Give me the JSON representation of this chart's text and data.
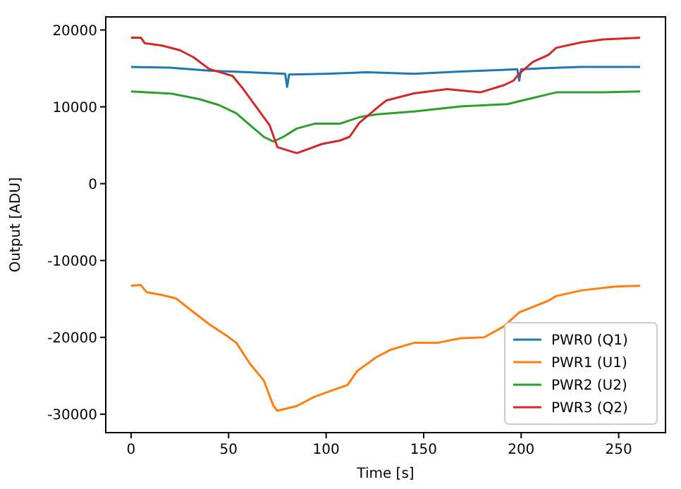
{
  "chart_data": {
    "type": "line",
    "xlabel": "Time [s]",
    "ylabel": "Output [ADU]",
    "xlim": [
      -13,
      274
    ],
    "ylim": [
      -32400,
      21700
    ],
    "xticks": [
      0,
      50,
      100,
      150,
      200,
      250
    ],
    "yticks": [
      -30000,
      -20000,
      -10000,
      0,
      10000,
      20000
    ],
    "grid": false,
    "legend": "bottom right",
    "line_style": "solid",
    "marker": "none",
    "series": [
      {
        "name": "PWR0 (Q1)",
        "color": "#1f77b4",
        "x": [
          0,
          20,
          40,
          60,
          79,
          80,
          81,
          100,
          121,
          145,
          169,
          190,
          198,
          199,
          200,
          210,
          230,
          261
        ],
        "values": [
          15200,
          15100,
          14700,
          14500,
          14300,
          12600,
          14200,
          14300,
          14500,
          14300,
          14600,
          14800,
          14900,
          13400,
          14900,
          15000,
          15200,
          15200
        ]
      },
      {
        "name": "PWR1 (U1)",
        "color": "#ff7f0e",
        "x": [
          0,
          5,
          8,
          16,
          23,
          30,
          40,
          49,
          54,
          61,
          68,
          73,
          75,
          85,
          94,
          104,
          111,
          116,
          126,
          133,
          145,
          157,
          169,
          181,
          191,
          199,
          214,
          218,
          231,
          248,
          261
        ],
        "values": [
          -13290,
          -13200,
          -14130,
          -14500,
          -14930,
          -16330,
          -18280,
          -19800,
          -20720,
          -23460,
          -25600,
          -28940,
          -29560,
          -28940,
          -27730,
          -26810,
          -26200,
          -24370,
          -22540,
          -21630,
          -20720,
          -20720,
          -20110,
          -20000,
          -18590,
          -16760,
          -15230,
          -14620,
          -13890,
          -13400,
          -13290
        ]
      },
      {
        "name": "PWR2 (U2)",
        "color": "#2ca02c",
        "x": [
          0,
          21,
          35,
          45,
          54,
          61,
          68,
          73,
          78,
          85,
          94,
          107,
          117,
          126,
          145,
          169,
          193,
          203,
          218,
          242,
          261
        ],
        "values": [
          12000,
          11700,
          11000,
          10240,
          9140,
          7620,
          6090,
          5480,
          6090,
          7180,
          7800,
          7800,
          8650,
          9020,
          9380,
          10050,
          10360,
          10970,
          11880,
          11880,
          12000
        ]
      },
      {
        "name": "PWR3 (Q2)",
        "color": "#d62728",
        "x": [
          0,
          5,
          7,
          16,
          25,
          32,
          40,
          52,
          57,
          64,
          71,
          75,
          85,
          98,
          107,
          112,
          117,
          127,
          131,
          145,
          162,
          179,
          191,
          196,
          199,
          206,
          214,
          218,
          231,
          242,
          261
        ],
        "values": [
          19000,
          19000,
          18280,
          17970,
          17370,
          16450,
          14930,
          14020,
          12490,
          10050,
          7620,
          4750,
          3970,
          5170,
          5610,
          6090,
          7920,
          10050,
          10840,
          11750,
          12300,
          11880,
          12800,
          13400,
          14310,
          15850,
          16760,
          17680,
          18400,
          18770,
          19000
        ]
      }
    ]
  }
}
